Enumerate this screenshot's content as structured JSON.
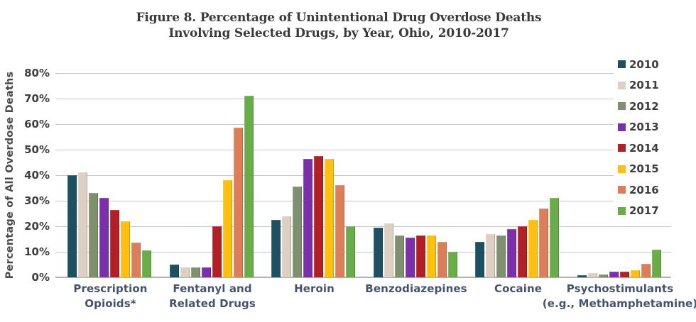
{
  "figure": {
    "title_line1": "Figure 8. Percentage of Unintentional Drug Overdose Deaths",
    "title_line2": "Involving Selected Drugs, by Year, Ohio, 2010-2017"
  },
  "chart_data": {
    "type": "bar",
    "title": "Figure 8. Percentage of Unintentional Drug Overdose Deaths Involving Selected Drugs, by Year, Ohio, 2010-2017",
    "xlabel": "",
    "ylabel": "Percentage of All Overdose Deaths",
    "ylim": [
      0,
      80
    ],
    "ytick_step": 10,
    "ytick_suffix": "%",
    "grid": true,
    "legend_position": "right",
    "categories": [
      "Prescription\nOpioids*",
      "Fentanyl and\nRelated Drugs",
      "Heroin",
      "Benzodiazepines",
      "Cocaine",
      "Psychostimulants\n(e.g., Methamphetamine)"
    ],
    "series": [
      {
        "name": "2010",
        "color": "#1d5062",
        "values": [
          40.0,
          5.0,
          22.5,
          19.5,
          14.0,
          0.7
        ]
      },
      {
        "name": "2011",
        "color": "#ddcfc1",
        "values": [
          41.0,
          4.0,
          24.0,
          21.0,
          17.0,
          1.7
        ]
      },
      {
        "name": "2012",
        "color": "#7f906f",
        "values": [
          33.0,
          4.0,
          35.5,
          16.5,
          16.5,
          1.0
        ]
      },
      {
        "name": "2013",
        "color": "#7b2fa8",
        "values": [
          31.0,
          4.0,
          46.5,
          15.5,
          19.0,
          2.3
        ]
      },
      {
        "name": "2014",
        "color": "#b02025",
        "values": [
          26.5,
          20.0,
          47.5,
          16.5,
          20.0,
          2.2
        ]
      },
      {
        "name": "2015",
        "color": "#fdc010",
        "values": [
          22.0,
          38.0,
          46.5,
          16.5,
          22.5,
          2.8
        ]
      },
      {
        "name": "2016",
        "color": "#dd7e5b",
        "values": [
          13.5,
          58.5,
          36.0,
          14.0,
          27.0,
          5.3
        ]
      },
      {
        "name": "2017",
        "color": "#6aab4a",
        "values": [
          10.5,
          71.0,
          20.0,
          10.0,
          31.0,
          10.7
        ]
      }
    ]
  }
}
